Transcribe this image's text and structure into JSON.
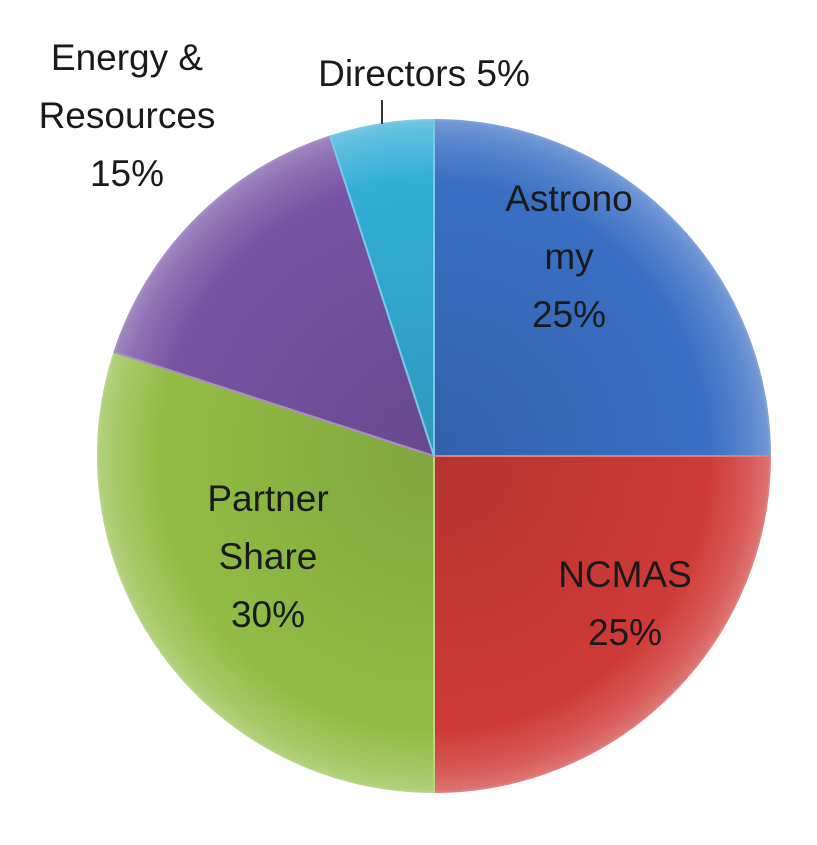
{
  "chart_data": {
    "type": "pie",
    "title": "",
    "slices": [
      {
        "label": "Astronomy",
        "label_lines": [
          "Astrono",
          "my",
          "25%"
        ],
        "value": 25,
        "color": "#3a6fc4"
      },
      {
        "label": "NCMAS",
        "label_lines": [
          "NCMAS",
          "25%"
        ],
        "value": 25,
        "color": "#cf3a37"
      },
      {
        "label": "Partner Share",
        "label_lines": [
          "Partner",
          "Share",
          "30%"
        ],
        "value": 30,
        "color": "#92bd45"
      },
      {
        "label": "Energy & Resources",
        "label_lines": [
          "Energy &",
          "Resources",
          "15%"
        ],
        "value": 15,
        "color": "#7753a3"
      },
      {
        "label": "Directors",
        "label_lines": [
          "Directors 5%"
        ],
        "value": 5,
        "color": "#33aed6"
      }
    ],
    "start_angle": "12 o'clock",
    "direction": "clockwise",
    "legend": "none"
  }
}
